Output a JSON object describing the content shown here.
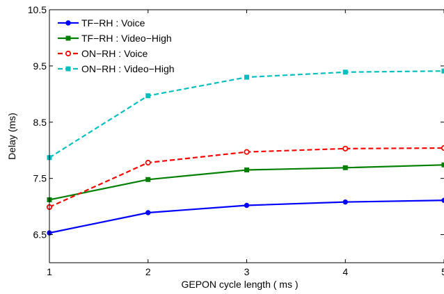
{
  "chart_data": {
    "type": "line",
    "xlabel": "GEPON cycle length ( ms )",
    "ylabel": "Delay (ms)",
    "x": [
      1,
      2,
      3,
      4,
      5
    ],
    "xlim": [
      1,
      5
    ],
    "ylim": [
      6.0,
      10.5
    ],
    "xticks": [
      "1",
      "2",
      "3",
      "4",
      "5"
    ],
    "yticks": [
      "6.5",
      "7.5",
      "8.5",
      "9.5",
      "10.5"
    ],
    "ytick_values": [
      6.5,
      7.5,
      8.5,
      9.5,
      10.5
    ],
    "grid": false,
    "legend_position": "top-left",
    "series": [
      {
        "name": "TF−RH  : Voice",
        "values": [
          6.53,
          6.89,
          7.02,
          7.08,
          7.11
        ],
        "color": "#0000ff",
        "dash": "solid",
        "marker": "circle"
      },
      {
        "name": "TF−RH  : Video−High",
        "values": [
          7.12,
          7.48,
          7.65,
          7.69,
          7.74
        ],
        "color": "#007f00",
        "dash": "solid",
        "marker": "square"
      },
      {
        "name": "ON−RH : Voice",
        "values": [
          6.99,
          7.78,
          7.97,
          8.03,
          8.04
        ],
        "color": "#ff0000",
        "dash": "dashed",
        "marker": "circle-open"
      },
      {
        "name": "ON−RH : Video−High",
        "values": [
          7.87,
          8.97,
          9.3,
          9.39,
          9.41
        ],
        "color": "#00bfbf",
        "dash": "dashed",
        "marker": "square"
      }
    ]
  }
}
